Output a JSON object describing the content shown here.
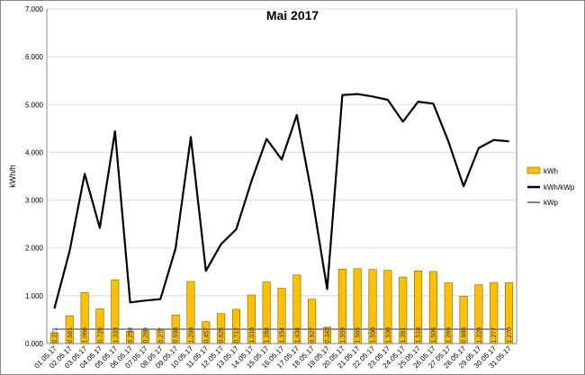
{
  "chart_data": {
    "type": "bar",
    "title": "Mai 2017",
    "xlabel": "",
    "ylabel": "kWh/h",
    "ylim": [
      0,
      7
    ],
    "y_tick_values": [
      0,
      1,
      2,
      3,
      4,
      5,
      6,
      7
    ],
    "y_tick_labels": [
      "0.000",
      "1.000",
      "2.000",
      "3.000",
      "4.000",
      "5.000",
      "6.000",
      "7.000"
    ],
    "grid": true,
    "legend_position": "right",
    "categories": [
      "01.05.17",
      "02.05.17",
      "03.05.17",
      "04.05.17",
      "05.05.17",
      "06.05.17",
      "07.05.17",
      "08.05.17",
      "09.05.17",
      "10.05.17",
      "11.05.17",
      "12.05.17",
      "13.05.17",
      "14.05.17",
      "15.05.17",
      "16.05.17",
      "17.05.17",
      "18.05.17",
      "19.05.17",
      "20.05.17",
      "21.05.17",
      "22.05.17",
      "23.05.17",
      "24.05.17",
      "25.05.17",
      "26.05.17",
      "27.05.17",
      "28.05.17",
      "29.05.17",
      "30.05.17",
      "31.05.17"
    ],
    "series": [
      {
        "name": "kWh",
        "kind": "bar",
        "color": "#FFC000",
        "values": [
          0.221,
          0.581,
          1.066,
          0.726,
          1.333,
          0.258,
          0.269,
          0.277,
          0.598,
          1.298,
          0.457,
          0.625,
          0.717,
          1.016,
          1.284,
          1.154,
          1.434,
          0.927,
          0.342,
          1.559,
          1.565,
          1.55,
          1.53,
          1.391,
          1.518,
          1.506,
          1.269,
          0.988,
          1.228,
          1.277,
          1.27
        ],
        "labels": [
          "0.221",
          "0.581",
          "1.066",
          "0.726",
          "1.333",
          "0.258",
          "0.269",
          "0.277",
          "0.598",
          "1.298",
          "0.457",
          "0.625",
          "0.717",
          "1.016",
          "1.284",
          "1.154",
          "1.434",
          "0.927",
          "0.342",
          "1.559",
          "1.565",
          "1.550",
          "1.530",
          "1.391",
          "1.518",
          "1.506",
          "1.269",
          "0.988",
          "1.228",
          "1.277",
          "1.270"
        ]
      },
      {
        "name": "kWh/kWp",
        "kind": "line",
        "color": "#000000",
        "values": [
          0.73,
          1.93,
          3.55,
          2.42,
          4.44,
          0.86,
          0.9,
          0.93,
          1.99,
          4.32,
          1.52,
          2.08,
          2.39,
          3.39,
          4.28,
          3.85,
          4.78,
          3.09,
          1.14,
          5.2,
          5.22,
          5.17,
          5.1,
          4.64,
          5.06,
          5.02,
          4.23,
          3.29,
          4.09,
          4.26,
          4.23
        ]
      },
      {
        "name": "kWp",
        "kind": "line",
        "color": "#808080",
        "values": [
          0.3,
          0.3,
          0.3,
          0.3,
          0.3,
          0.3,
          0.3,
          0.3,
          0.3,
          0.3,
          0.3,
          0.3,
          0.3,
          0.3,
          0.3,
          0.3,
          0.3,
          0.3,
          0.3,
          0.3,
          0.3,
          0.3,
          0.3,
          0.3,
          0.3,
          0.3,
          0.3,
          0.3,
          0.3,
          0.3,
          0.3
        ]
      }
    ]
  }
}
